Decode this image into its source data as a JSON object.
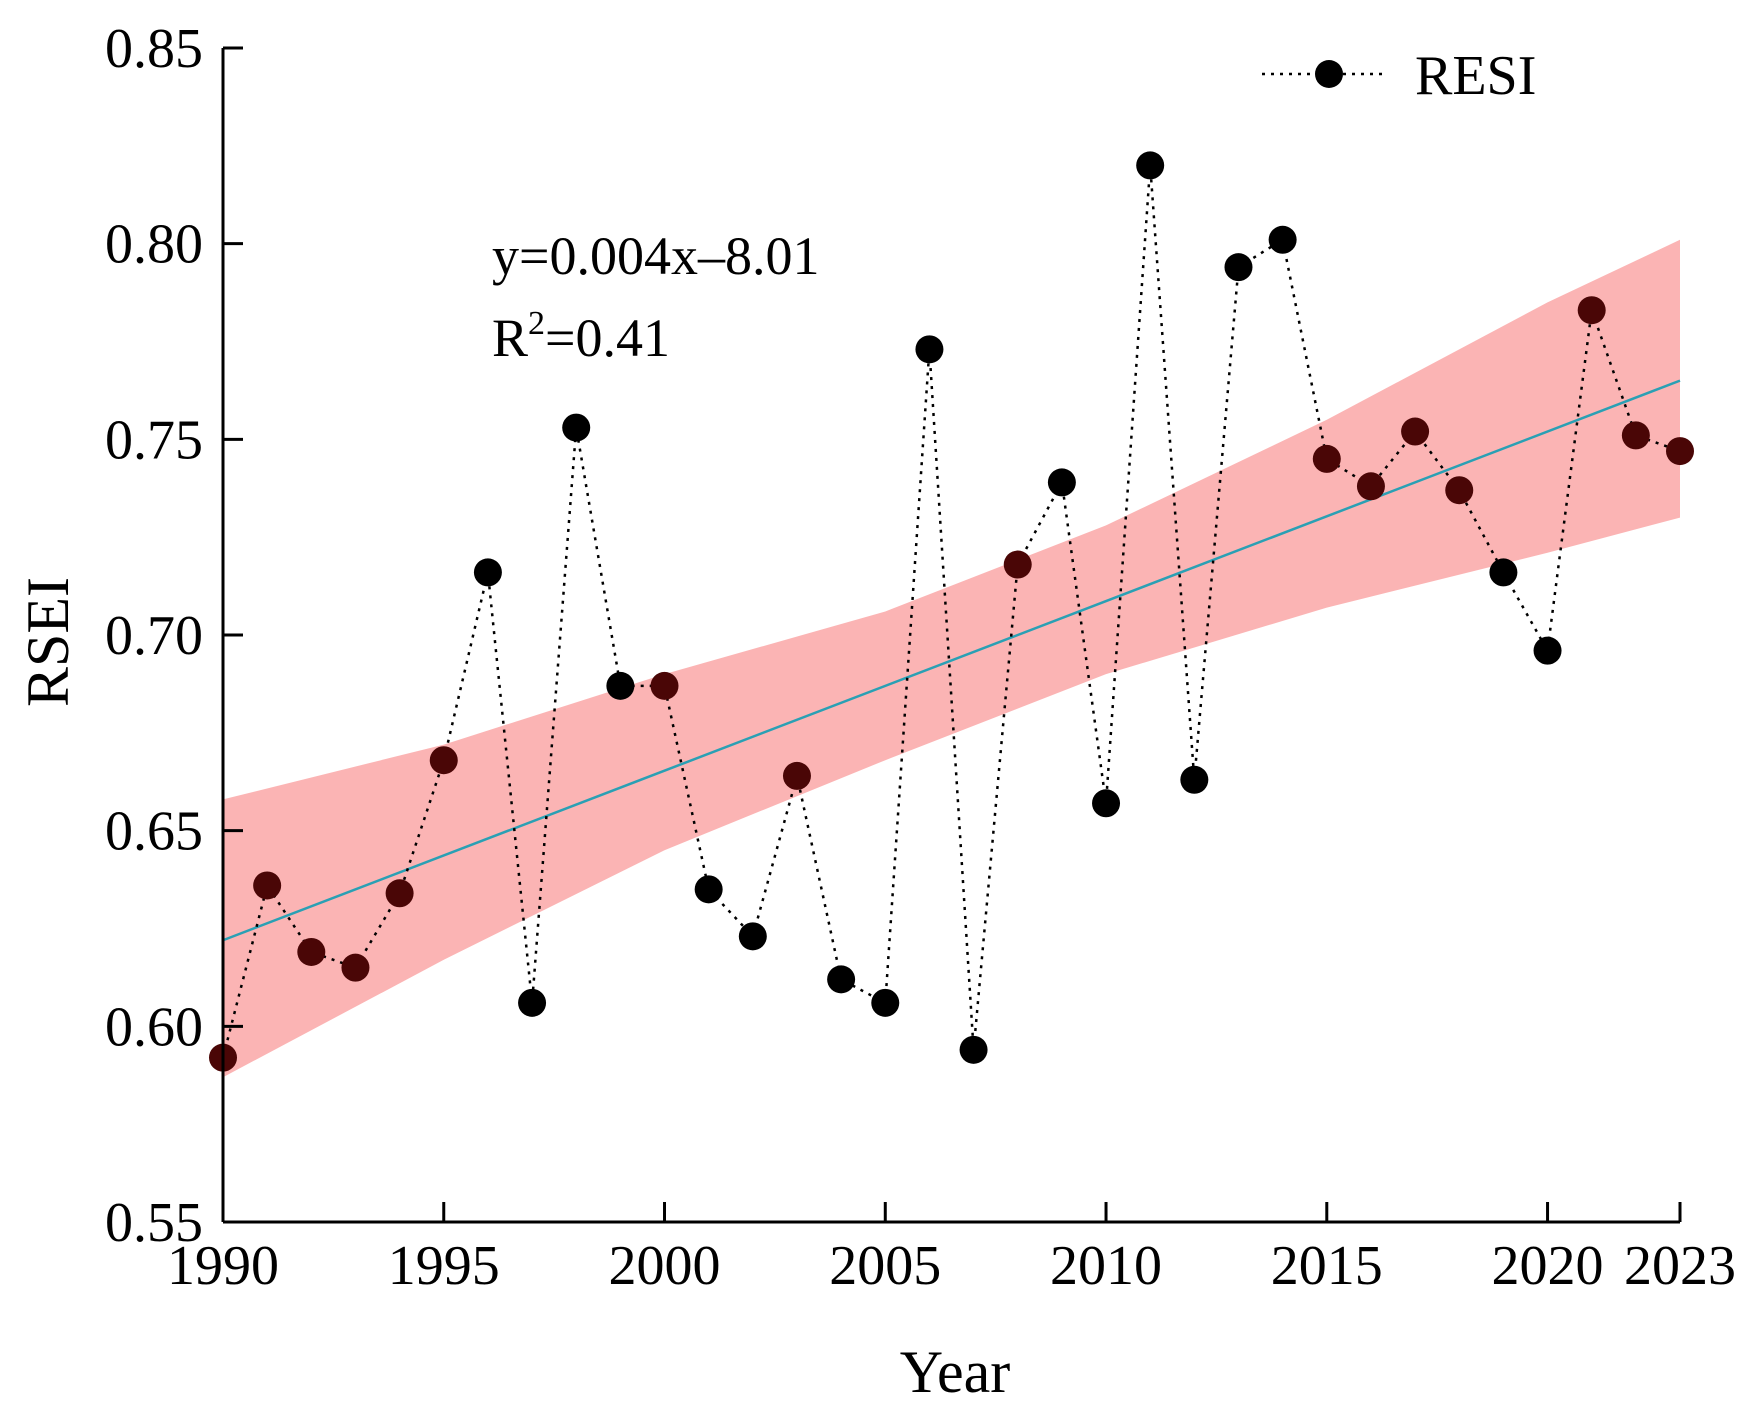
{
  "chart_data": {
    "type": "line",
    "title": "",
    "xlabel": "Year",
    "ylabel": "RSEI",
    "xlim": [
      1990,
      2023
    ],
    "ylim": [
      0.55,
      0.85
    ],
    "x_ticks": [
      "1990",
      "1995",
      "2000",
      "2005",
      "2010",
      "2015",
      "2020",
      "2023"
    ],
    "y_ticks": [
      "0.55",
      "0.60",
      "0.65",
      "0.70",
      "0.75",
      "0.80",
      "0.85"
    ],
    "legend": {
      "label": "RESI",
      "position": "top-right"
    },
    "series": [
      {
        "name": "RESI",
        "style": "dotted line with black circle markers",
        "x": [
          1990,
          1991,
          1992,
          1993,
          1994,
          1995,
          1996,
          1997,
          1998,
          1999,
          2000,
          2001,
          2002,
          2003,
          2004,
          2005,
          2006,
          2007,
          2008,
          2009,
          2010,
          2011,
          2012,
          2013,
          2014,
          2015,
          2016,
          2017,
          2018,
          2019,
          2020,
          2021,
          2022,
          2023
        ],
        "values": [
          0.592,
          0.636,
          0.619,
          0.615,
          0.634,
          0.668,
          0.716,
          0.606,
          0.753,
          0.687,
          0.687,
          0.635,
          0.623,
          0.664,
          0.612,
          0.606,
          0.773,
          0.594,
          0.718,
          0.739,
          0.657,
          0.82,
          0.663,
          0.794,
          0.801,
          0.745,
          0.738,
          0.752,
          0.737,
          0.716,
          0.696,
          0.783,
          0.751,
          0.747
        ]
      }
    ],
    "fit": {
      "type": "linear",
      "equation": "y=0.004x–8.01",
      "r2_prefix": "R",
      "r2_sup": "2",
      "r2_value": "=0.41",
      "line_color": "#2aa0b4",
      "endpoints": {
        "x": [
          1990,
          2023
        ],
        "y": [
          0.622,
          0.765
        ]
      },
      "confidence_band": {
        "x": [
          1990,
          1995,
          2000,
          2005,
          2010,
          2015,
          2020,
          2023
        ],
        "upper": [
          0.658,
          0.672,
          0.69,
          0.706,
          0.728,
          0.755,
          0.785,
          0.801
        ],
        "lower": [
          0.587,
          0.617,
          0.645,
          0.668,
          0.69,
          0.707,
          0.721,
          0.73
        ],
        "color": "#fbb0b0"
      }
    }
  }
}
